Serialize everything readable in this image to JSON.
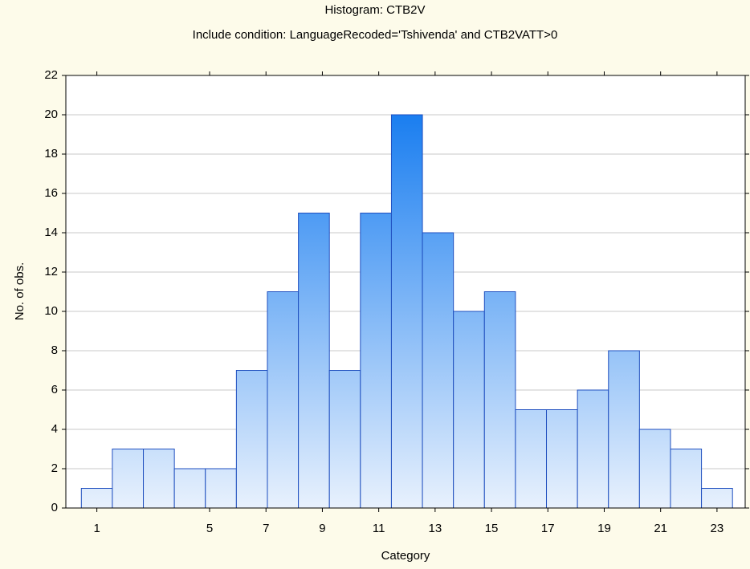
{
  "chart_data": {
    "type": "histogram",
    "title": "Histogram: CTB2V",
    "subtitle": "Include condition: LanguageRecoded='Tshivenda' and CTB2VATT>0",
    "xlabel": "Category",
    "ylabel": "No. of obs.",
    "bins": [
      0.45,
      1.55,
      2.65,
      3.75,
      4.85,
      5.95,
      7.05,
      8.15,
      9.25,
      10.35,
      11.45,
      12.55,
      13.65,
      14.75,
      15.85,
      16.95,
      18.05,
      19.15,
      20.25,
      21.35,
      22.45,
      23.55
    ],
    "values": [
      1,
      3,
      3,
      2,
      2,
      7,
      11,
      15,
      7,
      15,
      20,
      14,
      10,
      11,
      5,
      5,
      6,
      8,
      4,
      3,
      1
    ],
    "color": "#1a7ef0",
    "xlim": [
      -0.1,
      24
    ],
    "xticks": [
      1,
      5,
      7,
      9,
      11,
      13,
      15,
      17,
      19,
      21,
      23
    ],
    "ylim": [
      0,
      22
    ],
    "yticks": [
      0,
      2,
      4,
      6,
      8,
      10,
      12,
      14,
      16,
      18,
      20,
      22
    ],
    "grid": true
  }
}
